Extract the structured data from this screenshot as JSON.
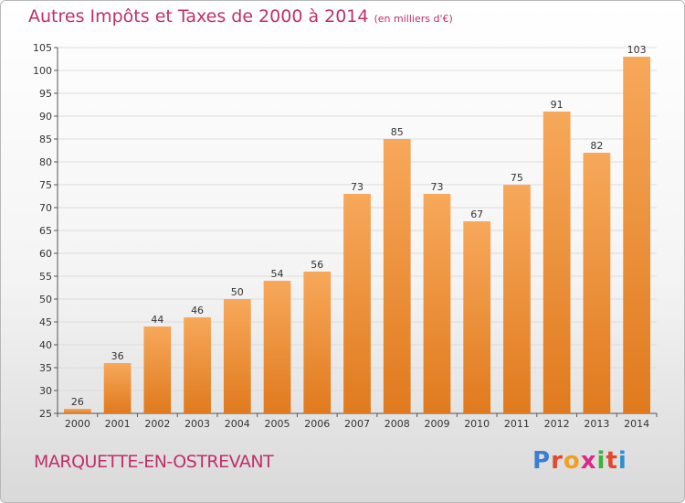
{
  "header": {
    "title": "Autres Impôts et Taxes de 2000 à 2014",
    "unit": "(en milliers d'€)"
  },
  "footer": {
    "city": "MARQUETTE-EN-OSTREVANT",
    "logo_letters": [
      "P",
      "r",
      "o",
      "x",
      "i",
      "t",
      "i"
    ]
  },
  "colors": {
    "title": "#c0306a",
    "bar_top": "#f7a85a",
    "bar_bottom": "#e07a1e",
    "logo": [
      "#3b7fd1",
      "#e5472d",
      "#f0a020",
      "#d92a8a",
      "#3bb33b",
      "#e5472d",
      "#2b8fd6"
    ]
  },
  "chart_data": {
    "type": "bar",
    "title": "Autres Impôts et Taxes de 2000 à 2014",
    "subtitle": "(en milliers d'€)",
    "categories": [
      "2000",
      "2001",
      "2002",
      "2003",
      "2004",
      "2005",
      "2006",
      "2007",
      "2008",
      "2009",
      "2010",
      "2011",
      "2012",
      "2013",
      "2014"
    ],
    "values": [
      26,
      36,
      44,
      46,
      50,
      54,
      56,
      73,
      85,
      73,
      67,
      75,
      91,
      82,
      103
    ],
    "ylim": [
      25,
      105
    ],
    "yticks": [
      25,
      30,
      35,
      40,
      45,
      50,
      55,
      60,
      65,
      70,
      75,
      80,
      85,
      90,
      95,
      100,
      105
    ],
    "grid": true,
    "xlabel": "",
    "ylabel": ""
  }
}
